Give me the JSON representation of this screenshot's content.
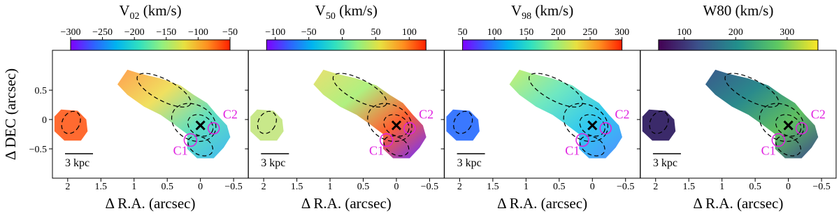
{
  "chart_data": [
    {
      "type": "heatmap",
      "title": {
        "symbol": "V",
        "subscript": "02",
        "unit": "(km/s)"
      },
      "xlabel": "Δ R.A. (arcsec)",
      "ylabel": "Δ DEC (arcsec)",
      "ytick_labels": true,
      "xlim": [
        2.23,
        -0.72
      ],
      "xticks": [
        2.0,
        1.5,
        1.0,
        0.5,
        0,
        {
          "value": -0.5,
          "label": "−0.5"
        }
      ],
      "ylim": [
        -1.0,
        1.18
      ],
      "yticks": [
        0.5,
        0,
        {
          "value": -0.5,
          "label": "−0.5"
        }
      ],
      "colorbar": {
        "colormap": "rainbow",
        "clim": [
          -300,
          -50
        ],
        "ticks": [
          {
            "value": -300,
            "label": "−300"
          },
          {
            "value": -250,
            "label": "−250"
          },
          {
            "value": -200,
            "label": "−200"
          },
          {
            "value": -150,
            "label": "−150"
          },
          {
            "value": -100,
            "label": "−100"
          },
          {
            "value": -50,
            "label": "−50"
          }
        ]
      },
      "annotations": [
        "C1",
        "C2"
      ],
      "scalebar": "3 kpc"
    },
    {
      "type": "heatmap",
      "title": {
        "symbol": "V",
        "subscript": "50",
        "unit": "(km/s)"
      },
      "xlabel": "Δ R.A. (arcsec)",
      "ytick_labels": false,
      "xlim": [
        2.23,
        -0.72
      ],
      "xticks": [
        2.0,
        1.5,
        1.0,
        0.5,
        0,
        {
          "value": -0.5,
          "label": "−0.5"
        }
      ],
      "ylim": [
        -1.0,
        1.18
      ],
      "yticks": [
        0.5,
        0,
        {
          "value": -0.5,
          "label": "−0.5"
        }
      ],
      "colorbar": {
        "colormap": "rainbow",
        "clim": [
          -113,
          125
        ],
        "ticks": [
          {
            "value": -100,
            "label": "−100"
          },
          {
            "value": -50,
            "label": "−50"
          },
          0,
          50,
          100
        ]
      },
      "annotations": [
        "C1",
        "C2"
      ],
      "scalebar": "3 kpc"
    },
    {
      "type": "heatmap",
      "title": {
        "symbol": "V",
        "subscript": "98",
        "unit": "(km/s)"
      },
      "xlabel": "Δ R.A. (arcsec)",
      "ytick_labels": false,
      "xlim": [
        2.23,
        -0.72
      ],
      "xticks": [
        2.0,
        1.5,
        1.0,
        0.5,
        0,
        {
          "value": -0.5,
          "label": "−0.5"
        }
      ],
      "ylim": [
        -1.0,
        1.18
      ],
      "yticks": [
        0.5,
        0,
        {
          "value": -0.5,
          "label": "−0.5"
        }
      ],
      "colorbar": {
        "colormap": "rainbow",
        "clim": [
          50,
          300
        ],
        "ticks": [
          50,
          100,
          150,
          200,
          250,
          300
        ]
      },
      "annotations": [
        "C1",
        "C2"
      ],
      "scalebar": "3 kpc"
    },
    {
      "type": "heatmap",
      "title": {
        "symbol": "W80",
        "unit": "(km/s)"
      },
      "xlabel": "Δ R.A. (arcsec)",
      "ytick_labels": false,
      "xlim": [
        2.23,
        -0.72
      ],
      "xticks": [
        2.0,
        1.5,
        1.0,
        0.5,
        0,
        {
          "value": -0.5,
          "label": "−0.5"
        }
      ],
      "ylim": [
        -1.0,
        1.18
      ],
      "yticks": [
        0.5,
        0,
        {
          "value": -0.5,
          "label": "−0.5"
        }
      ],
      "colorbar": {
        "colormap": "viridis",
        "clim": [
          50,
          360
        ],
        "ticks": [
          100,
          200,
          300
        ]
      },
      "annotations": [
        "C1",
        "C2"
      ],
      "scalebar": "3 kpc"
    }
  ]
}
